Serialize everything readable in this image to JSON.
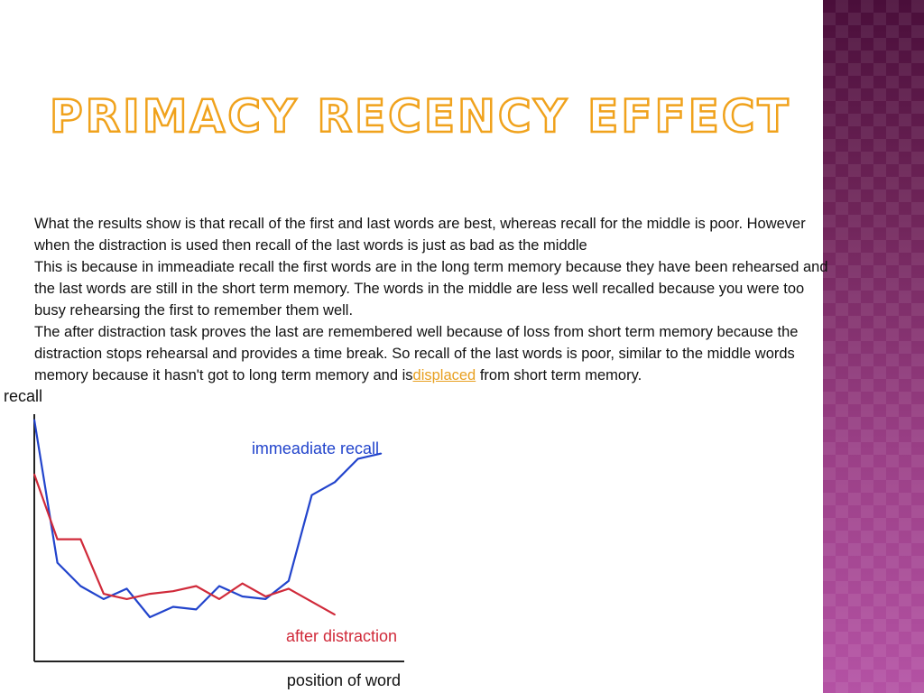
{
  "title": "Primacy Recency Effect",
  "paragraphs": {
    "p1": "What the results show is that recall of the first and last words are best, whereas recall for the middle is poor. However when the distraction is used then recall of the last words is just as bad as the middle",
    "p2": "This is because in immeadiate recall the first words are in the long term memory because they have been rehearsed and the last words are still in the short term memory. The words in the middle are less well recalled because you were too busy rehearsing the first to remember them well.",
    "p3_before": "The after distraction task proves the last are remembered well because of loss from short term memory because the distraction stops rehearsal and provides a time break. So recall of the last words is poor, similar to the middle words memory because it hasn't got to long term memory and is",
    "p3_link": "displaced",
    "p3_after": " from short term memory."
  },
  "colors": {
    "title_outline": "#f0a21c",
    "link": "#e8a020",
    "immediate_series": "#2244cc",
    "distraction_series": "#d02a3a",
    "sidebar": "#7a2a66"
  },
  "chart_data": {
    "type": "line",
    "ylabel": "recall",
    "xlabel": "position of word",
    "series": [
      {
        "name": "immeadiate recall",
        "color": "#2244cc",
        "x": [
          1,
          2,
          3,
          4,
          5,
          6,
          7,
          8,
          9,
          10,
          11,
          12,
          13,
          14,
          15,
          16
        ],
        "values": [
          0.93,
          0.38,
          0.29,
          0.24,
          0.28,
          0.17,
          0.21,
          0.2,
          0.29,
          0.25,
          0.24,
          0.31,
          0.64,
          0.69,
          0.78,
          0.8
        ]
      },
      {
        "name": "after distraction",
        "color": "#d02a3a",
        "x": [
          1,
          2,
          3,
          4,
          5,
          6,
          7,
          8,
          9,
          10,
          11,
          12,
          13,
          14
        ],
        "values": [
          0.72,
          0.47,
          0.47,
          0.26,
          0.24,
          0.26,
          0.27,
          0.29,
          0.24,
          0.3,
          0.25,
          0.28,
          0.23,
          0.18
        ]
      }
    ]
  }
}
